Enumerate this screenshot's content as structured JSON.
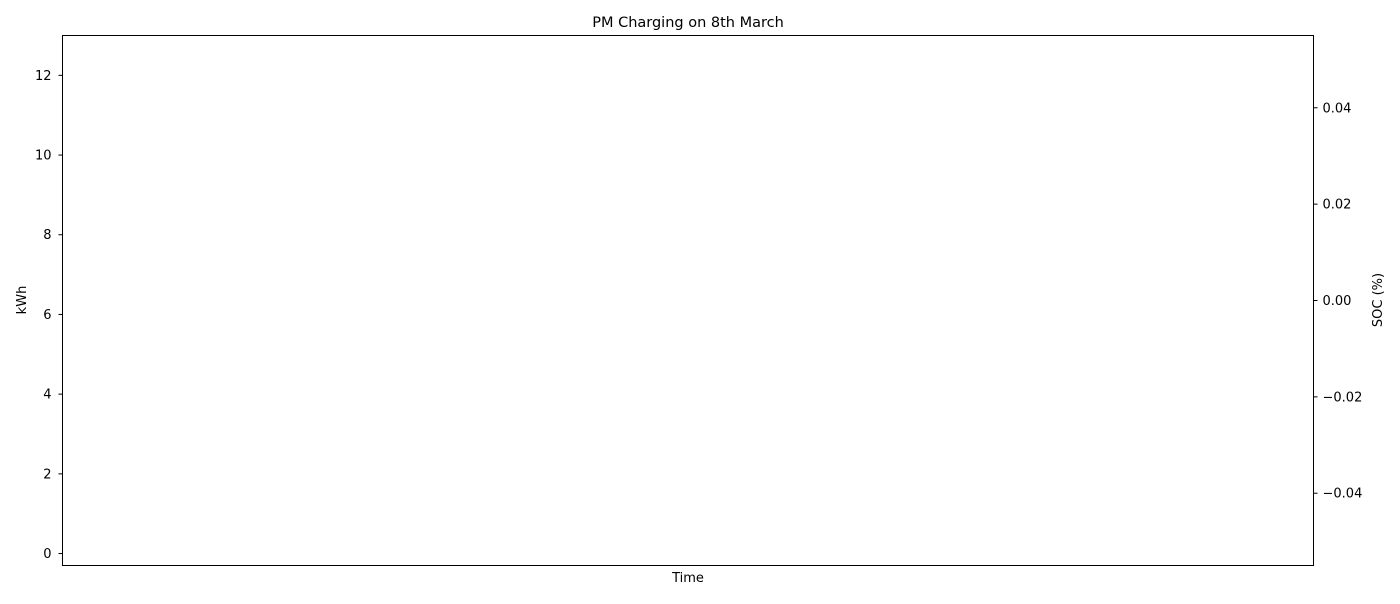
{
  "chart_data": {
    "type": "line",
    "title": "PM Charging on 8th March",
    "xlabel": "Time",
    "ylabel": "kWh",
    "ylabel_right": "SOC (%)",
    "left_axis": {
      "ylim": [
        -0.3,
        13.0
      ],
      "ticks": [
        0,
        2,
        4,
        6,
        8,
        10,
        12
      ],
      "tick_labels": [
        "0",
        "2",
        "4",
        "6",
        "8",
        "10",
        "12"
      ]
    },
    "right_axis": {
      "ylim": [
        -0.055,
        0.055
      ],
      "ticks": [
        -0.04,
        -0.02,
        0.0,
        0.02,
        0.04
      ],
      "tick_labels": [
        "−0.04",
        "−0.02",
        "0.00",
        "0.02",
        "0.04"
      ]
    },
    "x_ticks": [],
    "series": [],
    "grid": false,
    "legend": "none"
  }
}
